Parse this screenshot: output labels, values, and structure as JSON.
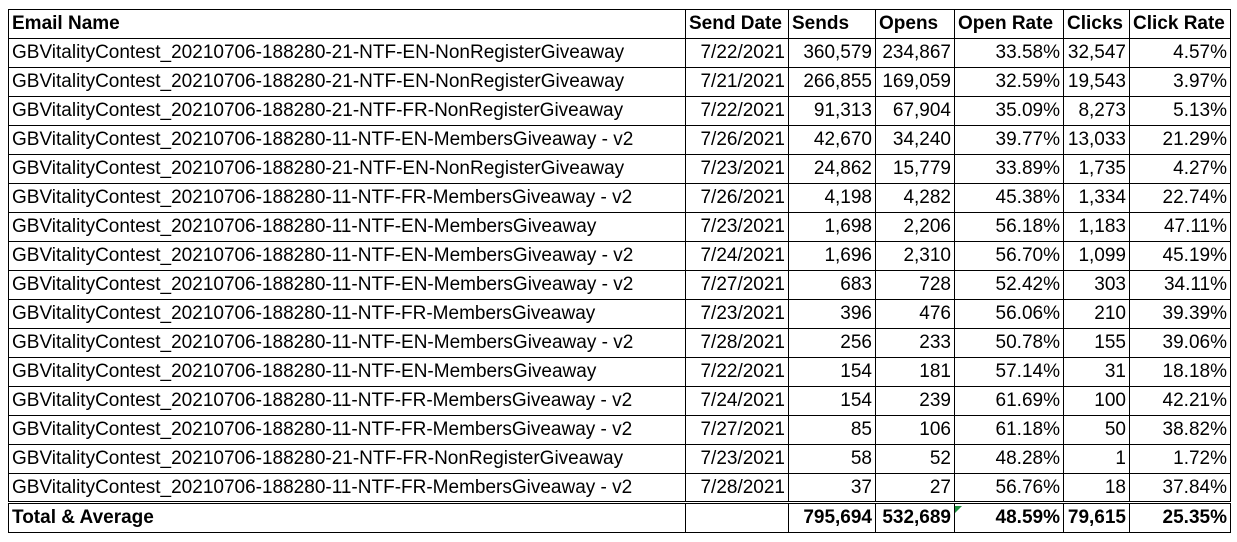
{
  "columns": [
    "Email Name",
    "Send Date",
    "Sends",
    "Opens",
    "Open Rate",
    "Clicks",
    "Click Rate"
  ],
  "rows": [
    [
      "GBVitalityContest_20210706-188280-21-NTF-EN-NonRegisterGiveaway",
      "7/22/2021",
      "360,579",
      "234,867",
      "33.58%",
      "32,547",
      "4.57%"
    ],
    [
      "GBVitalityContest_20210706-188280-21-NTF-EN-NonRegisterGiveaway",
      "7/21/2021",
      "266,855",
      "169,059",
      "32.59%",
      "19,543",
      "3.97%"
    ],
    [
      "GBVitalityContest_20210706-188280-21-NTF-FR-NonRegisterGiveaway",
      "7/22/2021",
      "91,313",
      "67,904",
      "35.09%",
      "8,273",
      "5.13%"
    ],
    [
      "GBVitalityContest_20210706-188280-11-NTF-EN-MembersGiveaway - v2",
      "7/26/2021",
      "42,670",
      "34,240",
      "39.77%",
      "13,033",
      "21.29%"
    ],
    [
      "GBVitalityContest_20210706-188280-21-NTF-EN-NonRegisterGiveaway",
      "7/23/2021",
      "24,862",
      "15,779",
      "33.89%",
      "1,735",
      "4.27%"
    ],
    [
      "GBVitalityContest_20210706-188280-11-NTF-FR-MembersGiveaway - v2",
      "7/26/2021",
      "4,198",
      "4,282",
      "45.38%",
      "1,334",
      "22.74%"
    ],
    [
      "GBVitalityContest_20210706-188280-11-NTF-EN-MembersGiveaway",
      "7/23/2021",
      "1,698",
      "2,206",
      "56.18%",
      "1,183",
      "47.11%"
    ],
    [
      "GBVitalityContest_20210706-188280-11-NTF-EN-MembersGiveaway - v2",
      "7/24/2021",
      "1,696",
      "2,310",
      "56.70%",
      "1,099",
      "45.19%"
    ],
    [
      "GBVitalityContest_20210706-188280-11-NTF-EN-MembersGiveaway - v2",
      "7/27/2021",
      "683",
      "728",
      "52.42%",
      "303",
      "34.11%"
    ],
    [
      "GBVitalityContest_20210706-188280-11-NTF-FR-MembersGiveaway",
      "7/23/2021",
      "396",
      "476",
      "56.06%",
      "210",
      "39.39%"
    ],
    [
      "GBVitalityContest_20210706-188280-11-NTF-EN-MembersGiveaway - v2",
      "7/28/2021",
      "256",
      "233",
      "50.78%",
      "155",
      "39.06%"
    ],
    [
      "GBVitalityContest_20210706-188280-11-NTF-EN-MembersGiveaway",
      "7/22/2021",
      "154",
      "181",
      "57.14%",
      "31",
      "18.18%"
    ],
    [
      "GBVitalityContest_20210706-188280-11-NTF-FR-MembersGiveaway - v2",
      "7/24/2021",
      "154",
      "239",
      "61.69%",
      "100",
      "42.21%"
    ],
    [
      "GBVitalityContest_20210706-188280-11-NTF-FR-MembersGiveaway - v2",
      "7/27/2021",
      "85",
      "106",
      "61.18%",
      "50",
      "38.82%"
    ],
    [
      "GBVitalityContest_20210706-188280-21-NTF-FR-NonRegisterGiveaway",
      "7/23/2021",
      "58",
      "52",
      "48.28%",
      "1",
      "1.72%"
    ],
    [
      "GBVitalityContest_20210706-188280-11-NTF-FR-MembersGiveaway - v2",
      "7/28/2021",
      "37",
      "27",
      "56.76%",
      "18",
      "37.84%"
    ]
  ],
  "total": [
    "Total & Average",
    "",
    "795,694",
    "532,689",
    "48.59%",
    "79,615",
    "25.35%"
  ],
  "colors": {
    "grid": "#000000",
    "error_indicator": "#1e8e3e"
  }
}
